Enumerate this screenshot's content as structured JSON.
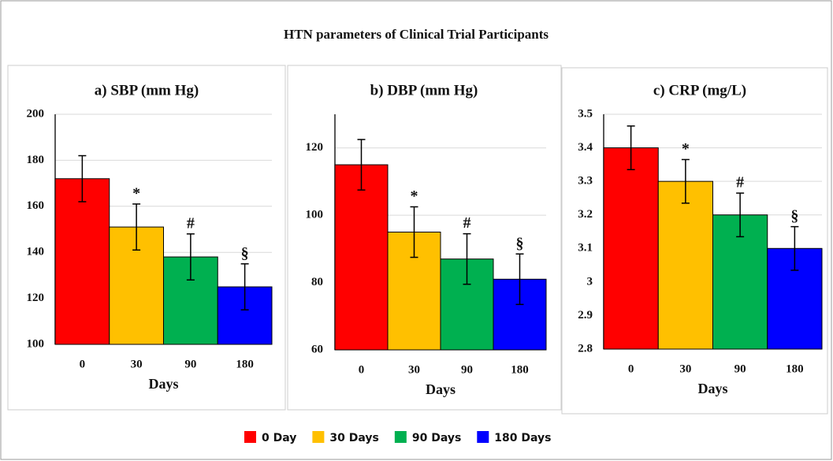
{
  "title": "HTN parameters of Clinical Trial Participants",
  "legend": [
    {
      "name": "0 Day",
      "color": "#ff0000"
    },
    {
      "name": "30 Days",
      "color": "#ffc000"
    },
    {
      "name": "90 Days",
      "color": "#00b050"
    },
    {
      "name": "180 Days",
      "color": "#0000ff"
    }
  ],
  "chart_data": [
    {
      "type": "bar",
      "title": "a) SBP (mm Hg)",
      "x_label": "Days",
      "categories": [
        "0",
        "30",
        "90",
        "180"
      ],
      "values": [
        172,
        151,
        138,
        125
      ],
      "errors": [
        10,
        10,
        10,
        10
      ],
      "markers": [
        null,
        "*",
        "#",
        "§"
      ],
      "ylim": [
        100,
        200
      ],
      "yticks": [
        100,
        120,
        140,
        160,
        180,
        200
      ],
      "grid": true
    },
    {
      "type": "bar",
      "title": "b) DBP (mm Hg)",
      "x_label": "Days",
      "categories": [
        "0",
        "30",
        "90",
        "180"
      ],
      "values": [
        115,
        95,
        87,
        81
      ],
      "errors": [
        7.5,
        7.5,
        7.5,
        7.5
      ],
      "markers": [
        null,
        "*",
        "#",
        "§"
      ],
      "ylim": [
        60,
        130
      ],
      "yticks": [
        60,
        80,
        100,
        120
      ],
      "grid": true
    },
    {
      "type": "bar",
      "title": "c) CRP (mg/L)",
      "x_label": "Days",
      "categories": [
        "0",
        "30",
        "90",
        "180"
      ],
      "values": [
        3.4,
        3.3,
        3.2,
        3.1
      ],
      "errors": [
        0.065,
        0.065,
        0.065,
        0.065
      ],
      "markers": [
        null,
        "*",
        "#",
        "§"
      ],
      "ylim": [
        2.8,
        3.5
      ],
      "yticks": [
        2.8,
        2.9,
        3,
        3.1,
        3.2,
        3.3,
        3.4,
        3.5
      ],
      "grid": true
    }
  ]
}
